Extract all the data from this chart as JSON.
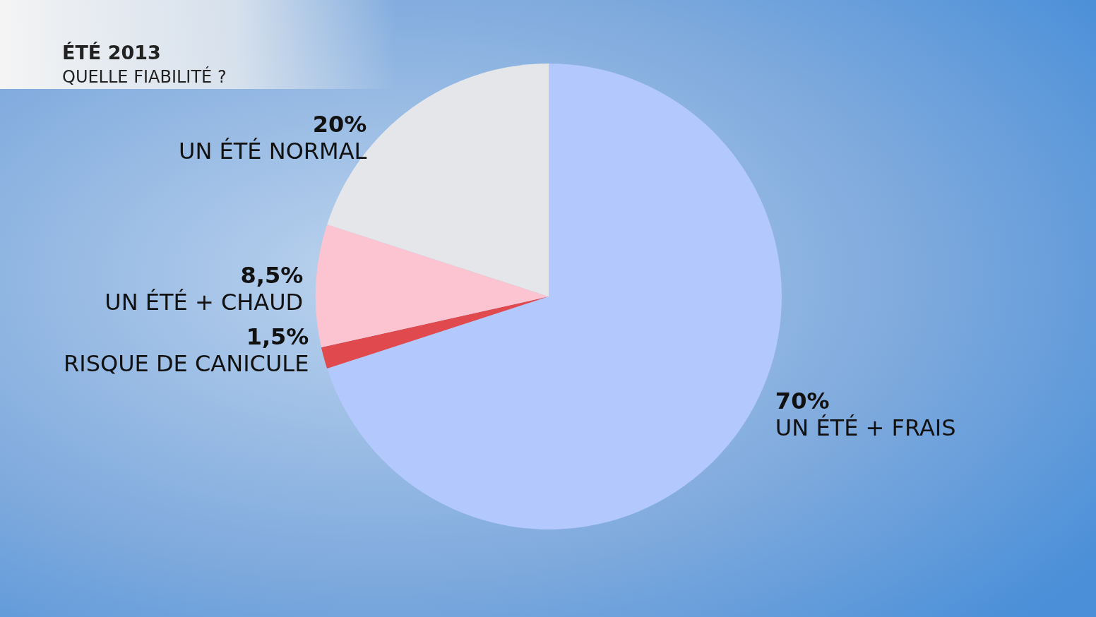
{
  "chart_data": {
    "type": "pie",
    "title": "ÉTÉ 2013",
    "subtitle": "QUELLE FIABILITÉ ?",
    "categories": [
      "UN ÉTÉ + FRAIS",
      "RISQUE DE CANICULE",
      "UN ÉTÉ + CHAUD",
      "UN ÉTÉ NORMAL"
    ],
    "values": [
      70,
      1.5,
      8.5,
      20
    ],
    "value_labels": [
      "70%",
      "1,5%",
      "8,5%",
      "20%"
    ],
    "colors": [
      "#b3c8fc",
      "#e04a4e",
      "#fbc4d0",
      "#e4e6ea"
    ]
  }
}
